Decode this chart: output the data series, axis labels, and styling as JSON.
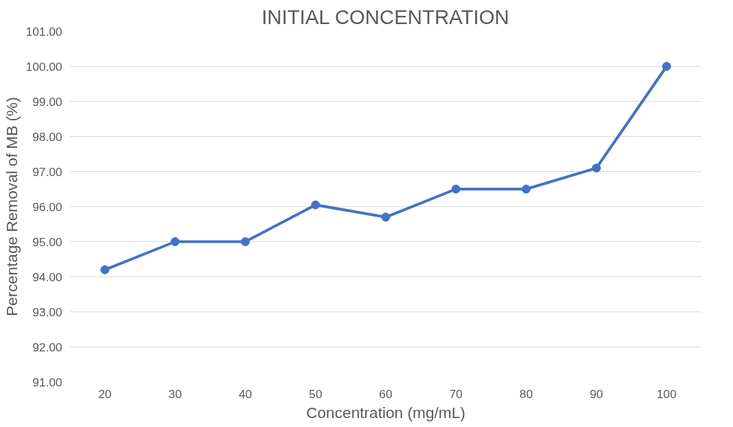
{
  "chart_data": {
    "type": "line",
    "title": "INITIAL CONCENTRATION",
    "xlabel": "Concentration (mg/mL)",
    "ylabel": "Percentage Removal of MB (%)",
    "categories": [
      "20",
      "30",
      "40",
      "50",
      "60",
      "70",
      "80",
      "90",
      "100"
    ],
    "series": [
      {
        "color": "#4472c4",
        "values": [
          94.2,
          95.0,
          95.0,
          96.05,
          95.7,
          96.5,
          96.5,
          97.1,
          100.0
        ]
      }
    ],
    "ylim": [
      91,
      101
    ],
    "yticks": [
      {
        "value": 91,
        "label": "91.00"
      },
      {
        "value": 92,
        "label": "92.00"
      },
      {
        "value": 93,
        "label": "93.00"
      },
      {
        "value": 94,
        "label": "94.00"
      },
      {
        "value": 95,
        "label": "95.00"
      },
      {
        "value": 96,
        "label": "96.00"
      },
      {
        "value": 97,
        "label": "97.00"
      },
      {
        "value": 98,
        "label": "98.00"
      },
      {
        "value": 99,
        "label": "99.00"
      },
      {
        "value": 100,
        "label": "100.00"
      },
      {
        "value": 101,
        "label": "101.00"
      }
    ],
    "grid": "y",
    "marker": "circle",
    "line_style": "solid"
  }
}
